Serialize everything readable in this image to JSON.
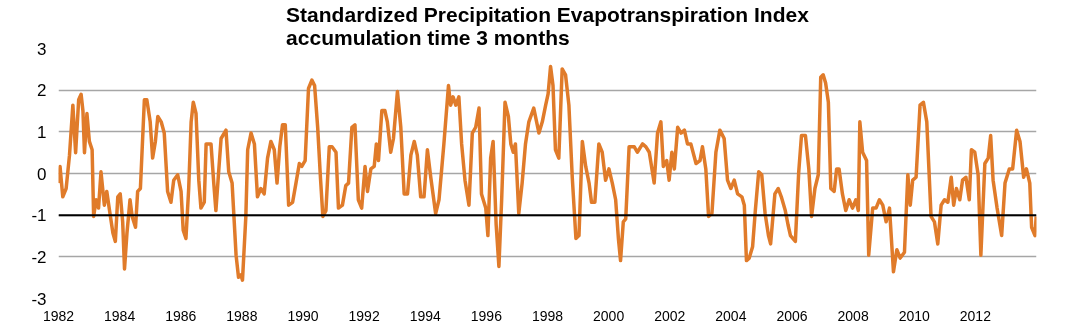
{
  "chart_data": {
    "type": "line",
    "title": "Standardized Precipitation Evapotranspiration Index\naccumulation time 3 months",
    "xlim": [
      1982,
      2014
    ],
    "xticks": [
      1982,
      1984,
      1986,
      1988,
      1990,
      1992,
      1994,
      1996,
      1998,
      2000,
      2002,
      2004,
      2006,
      2008,
      2010,
      2012
    ],
    "ylim": [
      -3,
      3
    ],
    "yticks": [
      -3,
      -2,
      -1,
      0,
      1,
      2,
      3
    ],
    "grid": "y",
    "line_style": "solid",
    "marker": "none",
    "ref_lines": [
      {
        "axis": "y",
        "value": -1,
        "color": "#000000"
      }
    ],
    "series": [
      {
        "color": "#e07b2a",
        "x": [
          1982.0,
          1982.05,
          1982.14,
          1982.25,
          1982.36,
          1982.47,
          1982.56,
          1982.66,
          1982.74,
          1982.8,
          1982.85,
          1982.93,
          1983.01,
          1983.1,
          1983.15,
          1983.23,
          1983.31,
          1983.39,
          1983.5,
          1983.58,
          1983.67,
          1983.78,
          1983.86,
          1983.94,
          1984.02,
          1984.1,
          1984.16,
          1984.24,
          1984.34,
          1984.41,
          1984.52,
          1984.59,
          1984.68,
          1984.81,
          1984.89,
          1985.0,
          1985.08,
          1985.17,
          1985.25,
          1985.36,
          1985.46,
          1985.57,
          1985.68,
          1985.77,
          1985.9,
          1986.01,
          1986.08,
          1986.17,
          1986.26,
          1986.34,
          1986.41,
          1986.5,
          1986.59,
          1986.66,
          1986.77,
          1986.83,
          1986.99,
          1987.08,
          1987.15,
          1987.24,
          1987.32,
          1987.48,
          1987.57,
          1987.68,
          1987.81,
          1987.89,
          1987.97,
          1988.02,
          1988.13,
          1988.19,
          1988.3,
          1988.41,
          1988.51,
          1988.62,
          1988.73,
          1988.84,
          1988.95,
          1989.06,
          1989.15,
          1989.24,
          1989.33,
          1989.42,
          1989.53,
          1989.66,
          1989.77,
          1989.88,
          1989.96,
          1990.07,
          1990.18,
          1990.29,
          1990.38,
          1990.48,
          1990.57,
          1990.65,
          1990.75,
          1990.86,
          1990.95,
          1991.08,
          1991.16,
          1991.29,
          1991.4,
          1991.49,
          1991.6,
          1991.7,
          1991.81,
          1991.92,
          1992.03,
          1992.11,
          1992.22,
          1992.33,
          1992.4,
          1992.47,
          1992.58,
          1992.68,
          1992.76,
          1992.87,
          1992.96,
          1993.09,
          1993.2,
          1993.31,
          1993.42,
          1993.53,
          1993.64,
          1993.74,
          1993.85,
          1993.96,
          1994.07,
          1994.18,
          1994.34,
          1994.45,
          1994.61,
          1994.76,
          1994.83,
          1994.91,
          1995.0,
          1995.1,
          1995.19,
          1995.3,
          1995.43,
          1995.54,
          1995.65,
          1995.76,
          1995.84,
          1995.98,
          1996.05,
          1996.14,
          1996.22,
          1996.32,
          1996.41,
          1996.5,
          1996.61,
          1996.72,
          1996.8,
          1996.88,
          1996.95,
          1997.06,
          1997.17,
          1997.28,
          1997.39,
          1997.55,
          1997.72,
          1997.83,
          1997.94,
          1998.02,
          1998.1,
          1998.18,
          1998.26,
          1998.37,
          1998.48,
          1998.59,
          1998.7,
          1998.81,
          1998.93,
          1999.03,
          1999.14,
          1999.25,
          1999.36,
          1999.44,
          1999.55,
          1999.68,
          1999.79,
          1999.9,
          2000.01,
          2000.12,
          2000.23,
          2000.32,
          2000.39,
          2000.48,
          2000.56,
          2000.67,
          2000.84,
          2000.94,
          2001.11,
          2001.22,
          2001.33,
          2001.49,
          2001.6,
          2001.71,
          2001.79,
          2001.9,
          2001.98,
          2002.07,
          2002.15,
          2002.26,
          2002.37,
          2002.48,
          2002.58,
          2002.69,
          2002.86,
          2002.99,
          2003.07,
          2003.18,
          2003.27,
          2003.38,
          2003.51,
          2003.64,
          2003.78,
          2003.89,
          2004.0,
          2004.11,
          2004.22,
          2004.36,
          2004.44,
          2004.51,
          2004.6,
          2004.71,
          2004.8,
          2004.91,
          2005.01,
          2005.12,
          2005.23,
          2005.3,
          2005.44,
          2005.55,
          2005.65,
          2005.78,
          2005.87,
          2005.95,
          2006.11,
          2006.22,
          2006.31,
          2006.44,
          2006.55,
          2006.64,
          2006.75,
          2006.86,
          2006.94,
          2007.02,
          2007.1,
          2007.19,
          2007.27,
          2007.38,
          2007.46,
          2007.54,
          2007.65,
          2007.76,
          2007.87,
          2007.98,
          2008.09,
          2008.17,
          2008.22,
          2008.31,
          2008.44,
          2008.51,
          2008.64,
          2008.75,
          2008.86,
          2008.97,
          2009.08,
          2009.19,
          2009.32,
          2009.43,
          2009.54,
          2009.68,
          2009.79,
          2009.87,
          2009.95,
          2010.06,
          2010.19,
          2010.3,
          2010.41,
          2010.55,
          2010.66,
          2010.77,
          2010.88,
          2010.99,
          2011.1,
          2011.21,
          2011.29,
          2011.38,
          2011.49,
          2011.58,
          2011.69,
          2011.8,
          2011.87,
          2011.98,
          2012.09,
          2012.18,
          2012.31,
          2012.42,
          2012.5,
          2012.58,
          2012.71,
          2012.86,
          2012.97,
          2013.11,
          2013.22,
          2013.35,
          2013.46,
          2013.58,
          2013.67,
          2013.78,
          2013.84,
          2013.95,
          2013.99
        ],
        "values": [
          -0.23,
          0.17,
          -0.56,
          -0.36,
          0.44,
          1.64,
          0.5,
          1.77,
          1.9,
          1.5,
          0.5,
          1.44,
          0.77,
          0.57,
          -1.03,
          -0.63,
          -0.83,
          0.04,
          -0.76,
          -0.43,
          -0.89,
          -1.43,
          -1.63,
          -0.56,
          -0.49,
          -1.16,
          -2.29,
          -1.43,
          -0.63,
          -1.03,
          -1.29,
          -0.43,
          -0.36,
          1.77,
          1.77,
          1.24,
          0.37,
          0.77,
          1.37,
          1.24,
          0.97,
          -0.43,
          -0.69,
          -0.16,
          -0.03,
          -0.43,
          -1.36,
          -1.56,
          -0.36,
          1.24,
          1.71,
          1.44,
          -0.16,
          -0.83,
          -0.69,
          0.71,
          0.71,
          -0.23,
          -0.89,
          0.04,
          0.84,
          1.04,
          0.04,
          -0.23,
          -1.96,
          -2.49,
          -2.43,
          -2.56,
          -1.03,
          0.57,
          0.97,
          0.71,
          -0.56,
          -0.36,
          -0.49,
          0.37,
          0.77,
          0.57,
          -0.23,
          0.64,
          1.17,
          1.17,
          -0.76,
          -0.69,
          -0.23,
          0.24,
          0.17,
          0.31,
          2.04,
          2.24,
          2.11,
          1.11,
          -0.09,
          -1.03,
          -0.89,
          0.64,
          0.64,
          0.51,
          -0.83,
          -0.76,
          -0.29,
          -0.23,
          1.11,
          1.17,
          -0.63,
          -0.83,
          0.17,
          -0.43,
          0.11,
          0.17,
          0.71,
          0.31,
          1.51,
          1.51,
          1.24,
          0.51,
          0.84,
          1.97,
          1.11,
          -0.49,
          -0.49,
          0.44,
          0.77,
          0.44,
          -0.56,
          -0.56,
          0.57,
          -0.09,
          -0.96,
          -0.63,
          0.71,
          2.11,
          1.64,
          1.84,
          1.64,
          1.84,
          0.71,
          -0.16,
          -0.76,
          0.97,
          1.11,
          1.57,
          -0.49,
          -0.83,
          -1.49,
          0.37,
          0.77,
          -1.23,
          -2.23,
          -0.63,
          1.71,
          1.37,
          0.71,
          0.51,
          0.71,
          -0.96,
          -0.23,
          0.71,
          1.24,
          1.57,
          0.97,
          1.24,
          1.64,
          1.91,
          2.57,
          2.11,
          0.57,
          0.37,
          2.51,
          2.37,
          1.64,
          -0.09,
          -1.56,
          -1.49,
          0.77,
          0.17,
          -0.23,
          -0.69,
          -0.69,
          0.71,
          0.51,
          -0.16,
          0.11,
          -0.23,
          -0.63,
          -1.56,
          -2.09,
          -1.16,
          -1.09,
          0.64,
          0.64,
          0.51,
          0.71,
          0.64,
          0.51,
          -0.23,
          0.97,
          1.24,
          0.17,
          0.31,
          -0.16,
          0.51,
          0.11,
          1.11,
          0.97,
          1.04,
          0.71,
          0.71,
          0.24,
          0.31,
          0.64,
          0.11,
          -1.03,
          -0.96,
          0.51,
          1.04,
          0.84,
          -0.16,
          -0.36,
          -0.16,
          -0.49,
          -0.56,
          -0.76,
          -2.09,
          -2.03,
          -1.76,
          -0.89,
          0.04,
          -0.03,
          -0.96,
          -1.49,
          -1.69,
          -0.49,
          -0.36,
          -0.56,
          -0.89,
          -1.23,
          -1.49,
          -1.63,
          0.04,
          0.91,
          0.91,
          0.11,
          -1.03,
          -0.36,
          -0.03,
          2.31,
          2.37,
          2.17,
          1.71,
          -0.36,
          -0.43,
          0.11,
          0.11,
          -0.49,
          -0.89,
          -0.63,
          -0.83,
          -0.63,
          -0.89,
          1.24,
          0.51,
          0.31,
          -1.96,
          -0.83,
          -0.83,
          -0.63,
          -0.76,
          -1.16,
          -0.83,
          -2.36,
          -1.83,
          -2.03,
          -1.89,
          -0.03,
          -0.76,
          -0.16,
          -0.09,
          1.64,
          1.71,
          1.24,
          -1.03,
          -1.16,
          -1.69,
          -0.76,
          -0.63,
          -0.69,
          -0.09,
          -0.76,
          -0.36,
          -0.63,
          -0.16,
          -0.09,
          -0.63,
          0.57,
          0.51,
          -0.03,
          -1.96,
          0.24,
          0.37,
          0.91,
          -0.16,
          -0.83,
          -1.49,
          -0.23,
          0.11,
          0.11,
          1.04,
          0.77,
          -0.09,
          0.11,
          -0.23,
          -1.29,
          -1.49,
          -1.03
        ]
      }
    ]
  }
}
